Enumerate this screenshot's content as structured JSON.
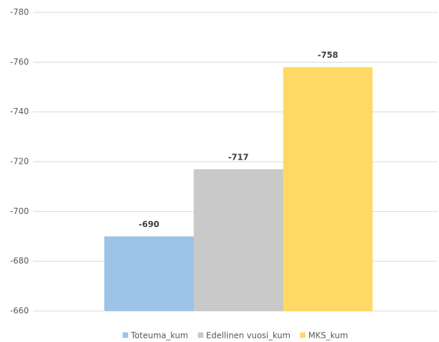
{
  "chart_data": {
    "type": "bar",
    "series": [
      {
        "name": "Toteuma_kum",
        "color": "#9dc3e6",
        "values": [
          -690
        ]
      },
      {
        "name": "Edellinen vuosi_kum",
        "color": "#c9c9c9",
        "values": [
          -717
        ]
      },
      {
        "name": "MKS_kum",
        "color": "#ffd966",
        "values": [
          -758
        ]
      }
    ],
    "ylim": [
      -660,
      -780
    ],
    "yticks": [
      -660,
      -680,
      -700,
      -720,
      -740,
      -760,
      -780
    ],
    "grid": true,
    "legend": "bottom"
  }
}
